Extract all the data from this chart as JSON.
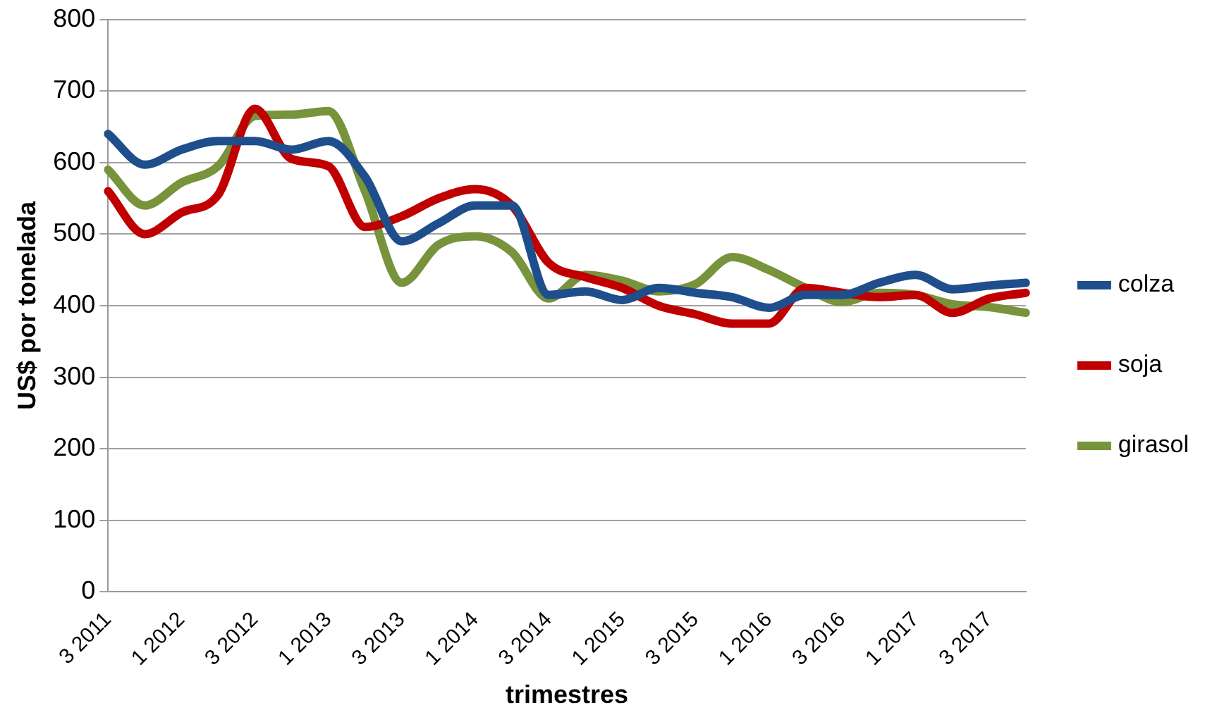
{
  "chart_data": {
    "type": "line",
    "xlabel": "trimestres",
    "ylabel": "US$ por tonelada",
    "categories": [
      "3 2011",
      null,
      "1 2012",
      null,
      "3 2012",
      null,
      "1 2013",
      null,
      "3 2013",
      null,
      "1 2014",
      null,
      "3 2014",
      null,
      "1 2015",
      null,
      "3 2015",
      null,
      "1 2016",
      null,
      "3 2016",
      null,
      "1 2017",
      null,
      "3 2017",
      null
    ],
    "series": [
      {
        "name": "colza",
        "color": "#1f4e8c",
        "values": [
          640,
          597,
          618,
          630,
          630,
          618,
          630,
          580,
          490,
          515,
          540,
          540,
          415,
          420,
          408,
          425,
          418,
          412,
          397,
          415,
          415,
          432,
          443,
          423,
          428,
          432
        ]
      },
      {
        "name": "soja",
        "color": "#c00000",
        "values": [
          560,
          500,
          530,
          555,
          675,
          605,
          595,
          510,
          525,
          550,
          563,
          540,
          460,
          440,
          425,
          400,
          388,
          375,
          375,
          425,
          418,
          412,
          415,
          390,
          410,
          418
        ]
      },
      {
        "name": "girasol",
        "color": "#77933c",
        "values": [
          590,
          540,
          572,
          595,
          665,
          667,
          672,
          560,
          432,
          485,
          497,
          475,
          410,
          443,
          435,
          420,
          430,
          468,
          450,
          425,
          405,
          418,
          415,
          402,
          398,
          390
        ]
      }
    ],
    "ylim": [
      0,
      800
    ],
    "yticks": [
      0,
      100,
      200,
      300,
      400,
      500,
      600,
      700,
      800
    ],
    "grid": "y",
    "legend": "right",
    "marker": "none",
    "line_style": "solid"
  }
}
